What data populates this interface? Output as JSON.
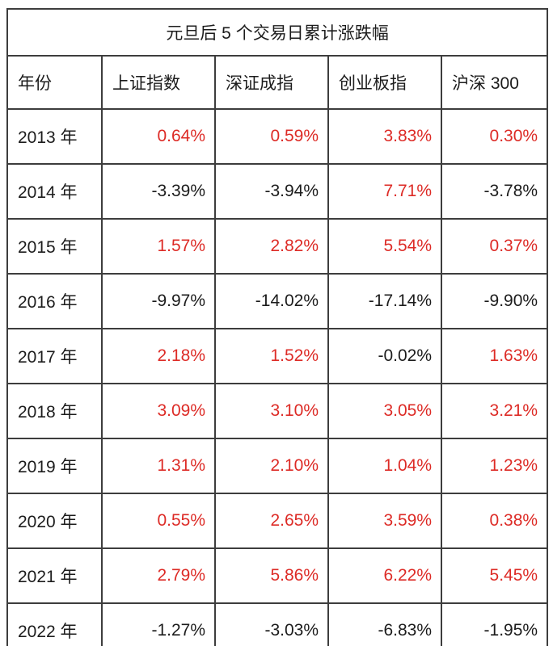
{
  "title": "元旦后 5 个交易日累计涨跌幅",
  "colors": {
    "positive": "#dd2b26",
    "negative": "#1c1c1c",
    "border": "#3d3d3d",
    "background": "#ffffff"
  },
  "chart_data": {
    "type": "table",
    "title": "元旦后 5 个交易日累计涨跌幅",
    "columns": [
      "年份",
      "上证指数",
      "深证成指",
      "创业板指",
      "沪深 300"
    ],
    "rows": [
      {
        "year": "2013 年",
        "values": [
          "0.64%",
          "0.59%",
          "3.83%",
          "0.30%"
        ]
      },
      {
        "year": "2014 年",
        "values": [
          "-3.39%",
          "-3.94%",
          "7.71%",
          "-3.78%"
        ]
      },
      {
        "year": "2015 年",
        "values": [
          "1.57%",
          "2.82%",
          "5.54%",
          "0.37%"
        ]
      },
      {
        "year": "2016 年",
        "values": [
          "-9.97%",
          "-14.02%",
          "-17.14%",
          "-9.90%"
        ]
      },
      {
        "year": "2017 年",
        "values": [
          "2.18%",
          "1.52%",
          "-0.02%",
          "1.63%"
        ]
      },
      {
        "year": "2018 年",
        "values": [
          "3.09%",
          "3.10%",
          "3.05%",
          "3.21%"
        ]
      },
      {
        "year": "2019 年",
        "values": [
          "1.31%",
          "2.10%",
          "1.04%",
          "1.23%"
        ]
      },
      {
        "year": "2020 年",
        "values": [
          "0.55%",
          "2.65%",
          "3.59%",
          "0.38%"
        ]
      },
      {
        "year": "2021 年",
        "values": [
          "2.79%",
          "5.86%",
          "6.22%",
          "5.45%"
        ]
      },
      {
        "year": "2022 年",
        "values": [
          "-1.27%",
          "-3.03%",
          "-6.83%",
          "-1.95%"
        ]
      }
    ],
    "value_color_rule": "positive values red, negative values black"
  }
}
